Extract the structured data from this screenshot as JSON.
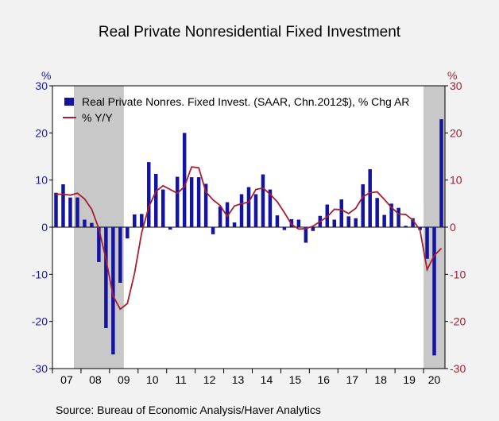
{
  "title": "Real Private Nonresidential Fixed Investment",
  "source": "Source:  Bureau of Economic Analysis/Haver Analytics",
  "colors": {
    "bar": "#1414a0",
    "line": "#a81e32",
    "left_axis": "#1a1aa0",
    "right_axis": "#a01e32",
    "recession": "#c8c8c8",
    "plot_bg": "#ffffff"
  },
  "chart_data": {
    "type": "bar",
    "ylabel_left": "%",
    "ylabel_right": "%",
    "ylim": [
      -30,
      30
    ],
    "yticks": [
      30,
      20,
      10,
      0,
      -10,
      -20,
      -30
    ],
    "year_labels": [
      "07",
      "08",
      "09",
      "10",
      "11",
      "12",
      "13",
      "14",
      "15",
      "16",
      "17",
      "18",
      "19",
      "20"
    ],
    "start_quarter": "2007Q1",
    "recessions": [
      [
        "2007Q4",
        "2009Q2"
      ],
      [
        "2020Q1",
        "2020Q3"
      ]
    ],
    "legend_position": "top-left",
    "series": [
      {
        "name": "Real Private Nonres. Fixed Invest. (SAAR, Chn.2012$), % Chg AR",
        "type": "bar",
        "values": [
          7.3,
          9.1,
          6.3,
          6.3,
          1.6,
          0.9,
          -7.4,
          -21.4,
          -27.0,
          -11.8,
          -2.4,
          2.7,
          2.8,
          13.8,
          11.3,
          8.0,
          -0.5,
          10.7,
          20.0,
          10.6,
          10.6,
          9.2,
          -1.5,
          4.4,
          5.3,
          1.0,
          7.0,
          8.5,
          7.0,
          11.2,
          8.0,
          2.5,
          -0.6,
          1.7,
          1.6,
          -3.3,
          -0.8,
          2.4,
          4.8,
          1.6,
          5.9,
          2.3,
          1.9,
          9.1,
          12.3,
          6.2,
          2.6,
          5.0,
          4.1,
          0.3,
          1.9,
          -0.6,
          -6.7,
          -27.2,
          22.9
        ]
      },
      {
        "name": "% Y/Y",
        "type": "line",
        "values": [
          7.0,
          7.0,
          6.8,
          7.2,
          6.0,
          3.8,
          -0.3,
          -6.8,
          -14.6,
          -17.4,
          -16.2,
          -9.8,
          -1.2,
          4.3,
          7.6,
          8.8,
          8.0,
          7.2,
          8.6,
          12.8,
          12.6,
          7.5,
          5.8,
          4.6,
          2.3,
          4.5,
          5.0,
          5.3,
          8.0,
          8.3,
          7.0,
          5.4,
          3.1,
          0.6,
          -0.4,
          -0.3,
          0.2,
          1.2,
          2.2,
          3.8,
          3.7,
          2.9,
          4.0,
          6.5,
          7.3,
          7.5,
          5.9,
          4.2,
          2.8,
          2.7,
          1.5,
          -0.6,
          -9.0,
          -6.0,
          -4.5
        ]
      }
    ]
  }
}
